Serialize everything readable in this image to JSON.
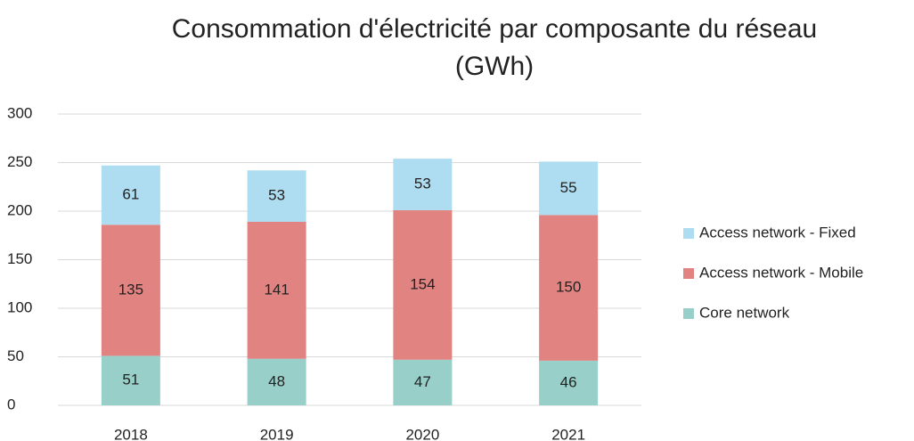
{
  "chart_data": {
    "type": "stacked_bar",
    "title": "Consommation d'électricité par composante du réseau (GWh)",
    "categories": [
      "2018",
      "2019",
      "2020",
      "2021"
    ],
    "series": [
      {
        "name": "Core network",
        "color": "#98cfc9",
        "values": [
          51,
          48,
          47,
          46
        ]
      },
      {
        "name": "Access network - Mobile",
        "color": "#e08381",
        "values": [
          135,
          141,
          154,
          150
        ]
      },
      {
        "name": "Access network - Fixed",
        "color": "#aedcf1",
        "values": [
          61,
          53,
          53,
          55
        ]
      }
    ],
    "ylim": [
      0,
      300
    ],
    "yticks": [
      0,
      50,
      100,
      150,
      200,
      250,
      300
    ],
    "grid": true,
    "legend": "right"
  }
}
